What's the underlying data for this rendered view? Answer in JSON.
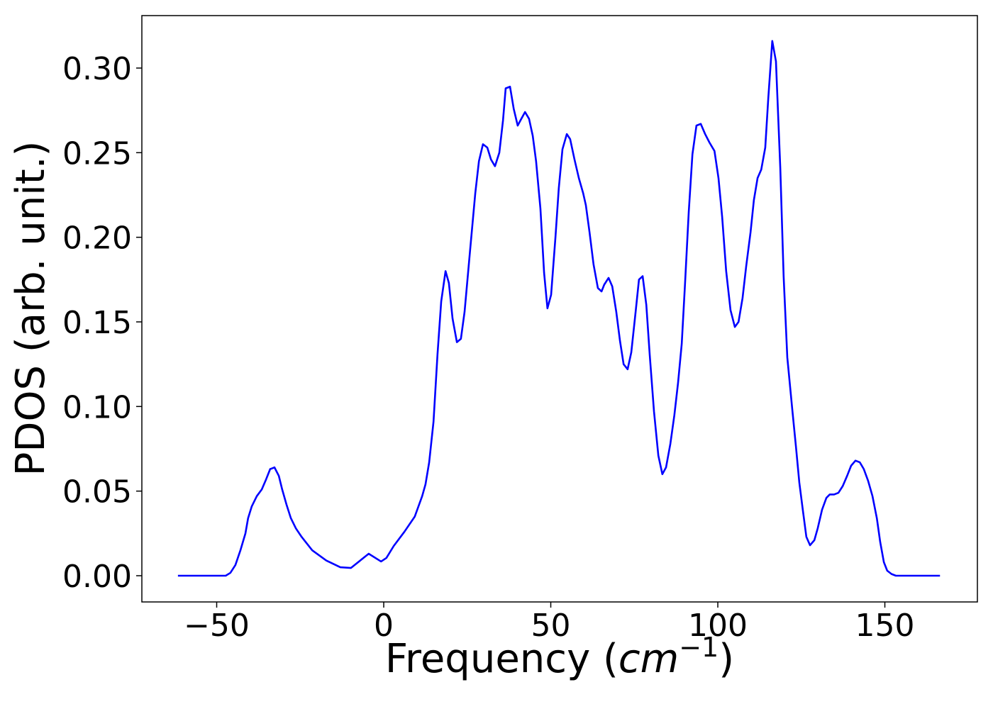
{
  "chart_data": {
    "type": "line",
    "xlabel": [
      "Frequency (",
      "cm",
      "−1",
      ")"
    ],
    "ylabel": "PDOS (arb. unit.)",
    "xlim": [
      -72.4,
      177.7
    ],
    "ylim": [
      -0.0155,
      0.331
    ],
    "xticks": [
      {
        "value": -50,
        "label": "−50"
      },
      0,
      50,
      100,
      150
    ],
    "yticks": [
      {
        "value": 0,
        "label": "0.00"
      },
      {
        "value": 0.05,
        "label": "0.05"
      },
      {
        "value": 0.1,
        "label": "0.10"
      },
      {
        "value": 0.15,
        "label": "0.15"
      },
      {
        "value": 0.2,
        "label": "0.20"
      },
      {
        "value": 0.25,
        "label": "0.25"
      },
      {
        "value": 0.3,
        "label": "0.30"
      }
    ],
    "grid": false,
    "series": [
      {
        "color": "#0000ff",
        "x": [
          -61.6,
          -47.3,
          -45.9,
          -44.4,
          -42.9,
          -41.4,
          -40.6,
          -39.5,
          -38.0,
          -36.5,
          -35.2,
          -34.0,
          -32.7,
          -31.4,
          -30.4,
          -29.1,
          -27.8,
          -26.3,
          -24.6,
          -21.4,
          -17.2,
          -13.0,
          -9.8,
          -4.5,
          -0.8,
          0.8,
          3.0,
          6.2,
          9.3,
          11.5,
          12.5,
          13.6,
          14.9,
          16.1,
          17.2,
          18.5,
          19.5,
          20.6,
          21.9,
          23.1,
          24.2,
          25.7,
          27.4,
          28.5,
          29.7,
          31.0,
          32.1,
          33.3,
          34.6,
          35.7,
          36.5,
          37.8,
          38.9,
          40.1,
          40.9,
          42.3,
          43.5,
          44.6,
          45.6,
          46.9,
          48.0,
          49.0,
          50.1,
          51.4,
          52.4,
          53.5,
          54.8,
          55.8,
          57.1,
          58.4,
          59.7,
          60.5,
          61.6,
          62.8,
          64.1,
          65.2,
          66.0,
          67.3,
          68.4,
          69.6,
          70.7,
          71.8,
          73.0,
          74.1,
          75.4,
          76.4,
          77.5,
          78.6,
          79.6,
          80.9,
          82.2,
          83.4,
          84.5,
          85.8,
          87.0,
          88.1,
          89.2,
          90.2,
          91.3,
          92.4,
          93.6,
          94.9,
          96.2,
          97.5,
          99.0,
          100.2,
          101.3,
          102.5,
          103.8,
          105.1,
          106.2,
          107.4,
          108.5,
          109.8,
          110.8,
          111.9,
          113.0,
          114.2,
          115.1,
          116.3,
          117.4,
          118.7,
          119.7,
          120.8,
          122.3,
          123.4,
          124.4,
          125.5,
          126.5,
          127.6,
          128.9,
          129.9,
          131.2,
          132.5,
          133.5,
          134.8,
          136.1,
          137.4,
          138.7,
          139.9,
          141.2,
          142.5,
          143.7,
          145.0,
          146.3,
          147.6,
          148.6,
          149.7,
          150.7,
          152.0,
          153.3,
          166.5
        ],
        "values": [
          0,
          0,
          0.0017,
          0.0063,
          0.015,
          0.025,
          0.034,
          0.041,
          0.047,
          0.051,
          0.057,
          0.063,
          0.064,
          0.059,
          0.051,
          0.042,
          0.034,
          0.028,
          0.023,
          0.015,
          0.009,
          0.005,
          0.0046,
          0.013,
          0.0084,
          0.0105,
          0.0176,
          0.026,
          0.035,
          0.047,
          0.054,
          0.067,
          0.091,
          0.131,
          0.162,
          0.18,
          0.173,
          0.152,
          0.138,
          0.14,
          0.156,
          0.189,
          0.226,
          0.245,
          0.255,
          0.253,
          0.246,
          0.242,
          0.25,
          0.269,
          0.288,
          0.289,
          0.276,
          0.266,
          0.269,
          0.274,
          0.27,
          0.26,
          0.245,
          0.217,
          0.179,
          0.158,
          0.166,
          0.2,
          0.229,
          0.252,
          0.261,
          0.258,
          0.246,
          0.235,
          0.226,
          0.219,
          0.203,
          0.184,
          0.17,
          0.168,
          0.172,
          0.176,
          0.171,
          0.156,
          0.139,
          0.125,
          0.122,
          0.132,
          0.156,
          0.175,
          0.177,
          0.16,
          0.131,
          0.097,
          0.071,
          0.06,
          0.064,
          0.078,
          0.095,
          0.114,
          0.137,
          0.173,
          0.215,
          0.249,
          0.266,
          0.267,
          0.261,
          0.256,
          0.251,
          0.235,
          0.212,
          0.18,
          0.157,
          0.147,
          0.15,
          0.164,
          0.183,
          0.203,
          0.222,
          0.235,
          0.24,
          0.253,
          0.282,
          0.316,
          0.304,
          0.241,
          0.177,
          0.129,
          0.098,
          0.076,
          0.055,
          0.038,
          0.023,
          0.018,
          0.021,
          0.028,
          0.039,
          0.046,
          0.048,
          0.048,
          0.049,
          0.053,
          0.059,
          0.065,
          0.068,
          0.067,
          0.063,
          0.056,
          0.047,
          0.034,
          0.02,
          0.008,
          0.003,
          0.001,
          0,
          0
        ]
      }
    ]
  }
}
